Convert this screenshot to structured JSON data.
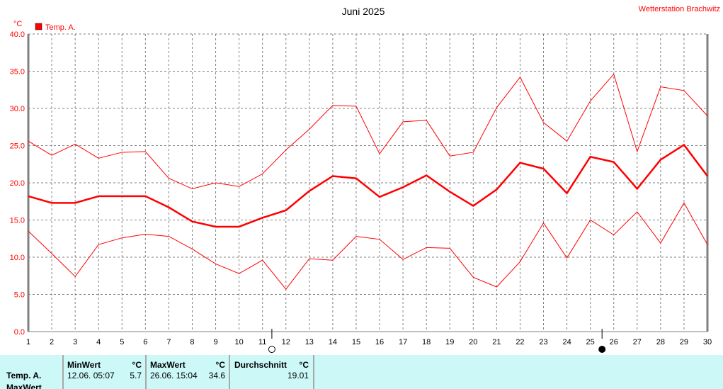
{
  "title": "Juni 2025",
  "station": "Wetterstation Brachwitz",
  "colors": {
    "series": "#ff0000",
    "grid": "#808080",
    "table_bg": "#ccf8f8"
  },
  "chart_data": {
    "type": "line",
    "title": "Juni 2025",
    "ylabel": "°C",
    "ylim": [
      0,
      40
    ],
    "yticks": [
      "0.0",
      "5.0",
      "10.0",
      "15.0",
      "20.0",
      "25.0",
      "30.0",
      "35.0",
      "40.0"
    ],
    "x": [
      1,
      2,
      3,
      4,
      5,
      6,
      7,
      8,
      9,
      10,
      11,
      12,
      13,
      14,
      15,
      16,
      17,
      18,
      19,
      20,
      21,
      22,
      23,
      24,
      25,
      26,
      27,
      28,
      29,
      30
    ],
    "grid": true,
    "legend": {
      "position": "top-left",
      "entries": [
        "Temp. A."
      ]
    },
    "series": [
      {
        "name": "Temp. A.",
        "role": "max",
        "values": [
          25.6,
          23.7,
          25.2,
          23.3,
          24.1,
          24.2,
          20.6,
          19.2,
          20.0,
          19.5,
          21.2,
          24.4,
          27.2,
          30.4,
          30.3,
          23.9,
          28.2,
          28.4,
          23.6,
          24.1,
          30.1,
          34.2,
          28.1,
          25.6,
          31.0,
          34.6,
          24.2,
          32.9,
          32.4,
          29.0
        ]
      },
      {
        "name": "Temp. A.",
        "role": "mean",
        "values": [
          18.2,
          17.3,
          17.3,
          18.2,
          18.2,
          18.2,
          16.7,
          14.8,
          14.1,
          14.1,
          15.3,
          16.3,
          18.9,
          20.9,
          20.6,
          18.1,
          19.4,
          21.0,
          18.8,
          16.9,
          19.1,
          22.7,
          21.9,
          18.6,
          23.5,
          22.8,
          19.2,
          23.1,
          25.1,
          20.9
        ]
      },
      {
        "name": "Temp. A.",
        "role": "min",
        "values": [
          13.5,
          10.5,
          7.4,
          11.7,
          12.6,
          13.1,
          12.8,
          11.1,
          9.1,
          7.8,
          9.6,
          5.7,
          9.8,
          9.6,
          12.8,
          12.4,
          9.7,
          11.3,
          11.2,
          7.3,
          6.0,
          9.4,
          14.6,
          9.9,
          15.0,
          13.0,
          16.1,
          11.9,
          17.3,
          11.7
        ]
      }
    ],
    "moon_phases": [
      {
        "day": 11.4,
        "phase": "full-moon"
      },
      {
        "day": 25.5,
        "phase": "new-moon"
      }
    ]
  },
  "table": {
    "row_label": "Temp. A.",
    "row_label2": "MaxWert",
    "min": {
      "header": "MinWert",
      "unit": "°C",
      "date": "12.06.  05:07",
      "value": "5.7"
    },
    "max": {
      "header": "MaxWert",
      "unit": "°C",
      "date": "26.06.  15:04",
      "value": "34.6"
    },
    "avg": {
      "header": "Durchschnitt",
      "unit": "°C",
      "value": "19.01"
    }
  }
}
